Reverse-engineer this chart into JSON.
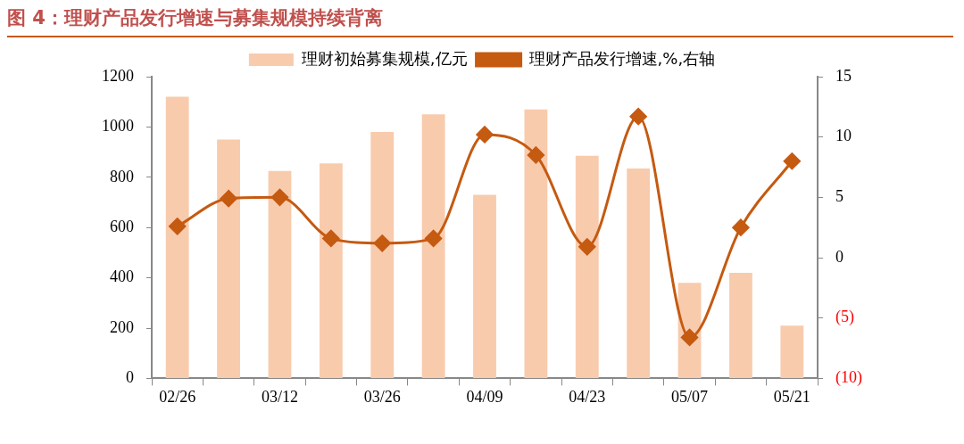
{
  "chart_data": {
    "type": "bar",
    "title": "图 4：理财产品发行增速与募集规模持续背离",
    "categories": [
      "02/26",
      null,
      "03/12",
      null,
      "03/26",
      null,
      "04/09",
      null,
      "04/23",
      null,
      "05/07",
      null,
      "05/21"
    ],
    "series": [
      {
        "name": "理财初始募集规模,亿元",
        "color": "#f8cbad",
        "values": [
          1120,
          950,
          825,
          855,
          980,
          1050,
          730,
          1070,
          885,
          835,
          380,
          420,
          210
        ]
      },
      {
        "name": "理财产品发行增速,%,右轴",
        "type": "line",
        "axis": "y2",
        "color": "#c55a11",
        "marker": "diamond",
        "values": [
          2.6,
          4.9,
          5.0,
          1.6,
          1.2,
          1.6,
          10.2,
          8.5,
          0.9,
          11.7,
          -6.6,
          2.5,
          8.0
        ]
      }
    ],
    "ylim": [
      0,
      1200
    ],
    "yticks": [
      0,
      200,
      400,
      600,
      800,
      1000,
      1200
    ],
    "y2lim": [
      -10,
      15
    ],
    "y2ticks": [
      {
        "value": -10,
        "label": "(10)"
      },
      {
        "value": -5,
        "label": "(5)"
      },
      0,
      5,
      10,
      15
    ],
    "grid": false,
    "legend": "top"
  }
}
